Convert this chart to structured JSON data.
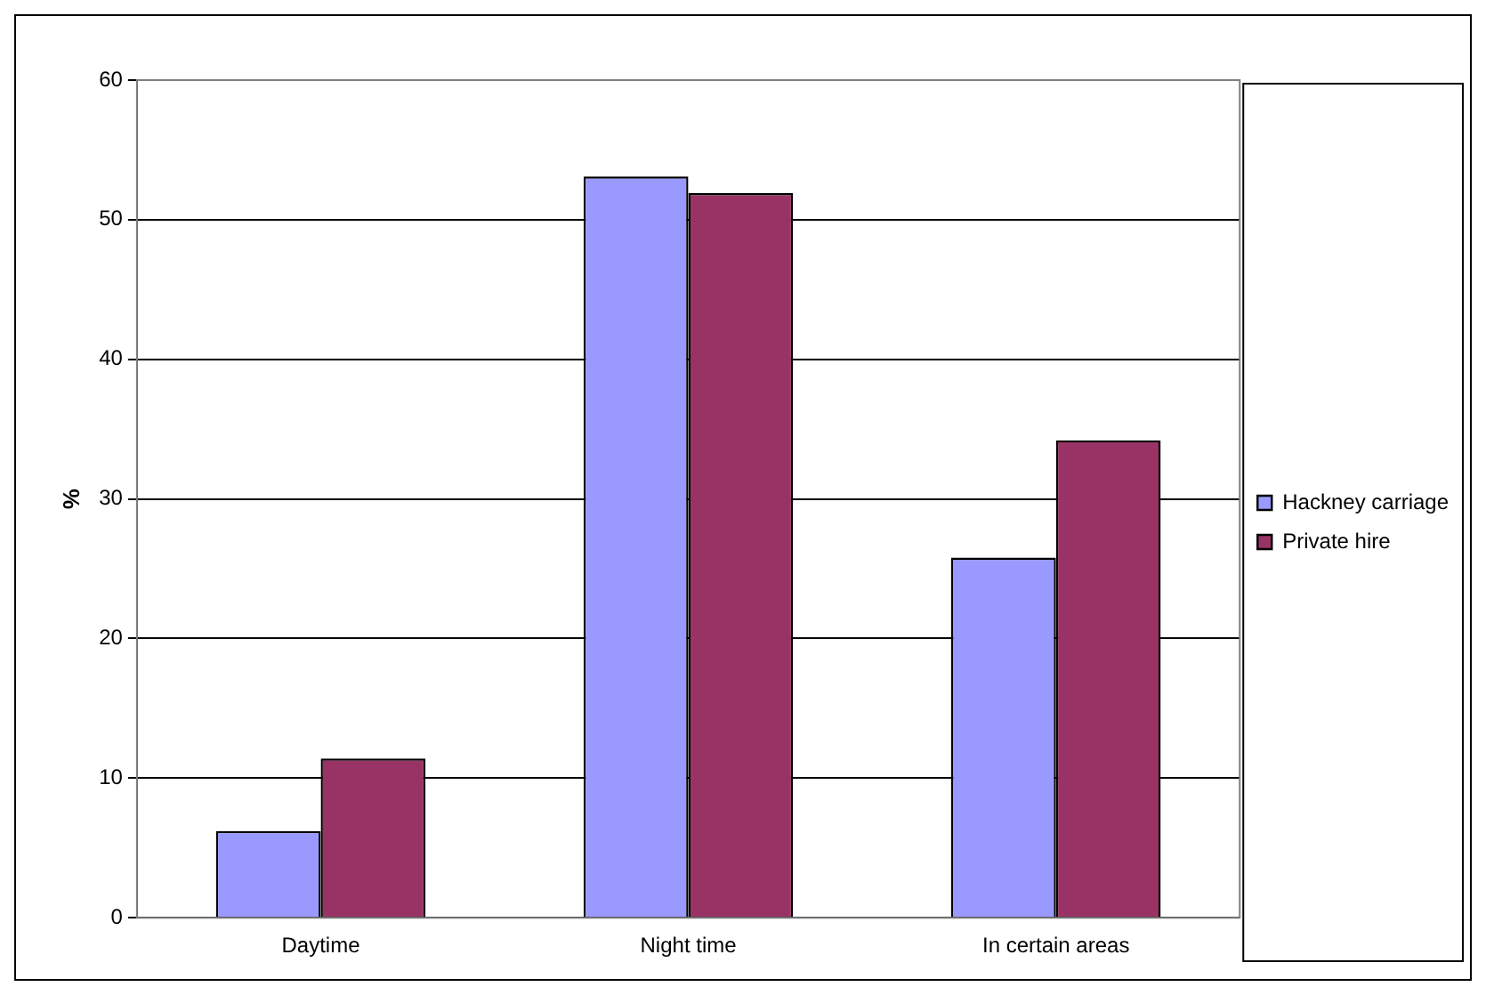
{
  "chart_data": {
    "type": "bar",
    "ylabel": "%",
    "categories": [
      "Daytime",
      "Night time",
      "In certain areas"
    ],
    "series": [
      {
        "name": "Hackney carriage",
        "color": "#9999ff",
        "values": [
          6.2,
          53.1,
          25.8
        ]
      },
      {
        "name": "Private hire",
        "color": "#993366",
        "values": [
          11.4,
          51.9,
          34.2
        ]
      }
    ],
    "ylim": [
      0,
      60
    ],
    "yticks": [
      0,
      10,
      20,
      30,
      40,
      50,
      60
    ],
    "grid": "y",
    "legend": "right"
  }
}
